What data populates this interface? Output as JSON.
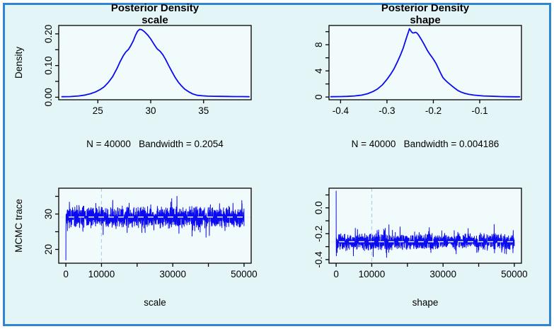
{
  "frame": {
    "border_color": "#2e86d3",
    "background": "#e4f5f7",
    "panel_background": "#f2fbfc",
    "line_color": "#0b0bf2",
    "axis_color": "#000000",
    "hline_color": "#eeeeee",
    "vline_color": "#aecfe8"
  },
  "chart_data": [
    {
      "id": "posterior-density-scale",
      "type": "line",
      "variant": "density",
      "title": "Posterior Density",
      "subtitle": "scale",
      "ylabel": "Density",
      "footer": "N = 40000   Bandwidth = 0.2054",
      "xlim": [
        21.3,
        39.5
      ],
      "ylim": [
        -0.008,
        0.2265
      ],
      "xticks": [
        {
          "v": 25,
          "label": "25"
        },
        {
          "v": 30,
          "label": "30"
        },
        {
          "v": 35,
          "label": "35"
        }
      ],
      "yticks": [
        {
          "v": 0,
          "label": "0.00"
        },
        {
          "v": 0.05,
          "label": ""
        },
        {
          "v": 0.1,
          "label": "0.10"
        },
        {
          "v": 0.15,
          "label": ""
        },
        {
          "v": 0.2,
          "label": "0.20"
        }
      ],
      "grid": false,
      "legend": null,
      "points": [
        [
          21.6,
          0.0015
        ],
        [
          22.4,
          0.002
        ],
        [
          23.2,
          0.004
        ],
        [
          23.8,
          0.007
        ],
        [
          24.3,
          0.011
        ],
        [
          24.8,
          0.017
        ],
        [
          25.2,
          0.024
        ],
        [
          25.6,
          0.033
        ],
        [
          26.0,
          0.047
        ],
        [
          26.4,
          0.065
        ],
        [
          26.8,
          0.09
        ],
        [
          27.1,
          0.112
        ],
        [
          27.4,
          0.131
        ],
        [
          27.65,
          0.143
        ],
        [
          27.9,
          0.151
        ],
        [
          28.1,
          0.162
        ],
        [
          28.35,
          0.178
        ],
        [
          28.55,
          0.195
        ],
        [
          28.75,
          0.208
        ],
        [
          28.95,
          0.2145
        ],
        [
          29.15,
          0.213
        ],
        [
          29.4,
          0.207
        ],
        [
          29.7,
          0.197
        ],
        [
          30.0,
          0.184
        ],
        [
          30.3,
          0.168
        ],
        [
          30.6,
          0.153
        ],
        [
          30.9,
          0.1445
        ],
        [
          31.15,
          0.134
        ],
        [
          31.4,
          0.12
        ],
        [
          31.7,
          0.1
        ],
        [
          32.0,
          0.081
        ],
        [
          32.3,
          0.063
        ],
        [
          32.6,
          0.048
        ],
        [
          32.9,
          0.036
        ],
        [
          33.2,
          0.026
        ],
        [
          33.6,
          0.017
        ],
        [
          34.0,
          0.01
        ],
        [
          34.4,
          0.006
        ],
        [
          34.9,
          0.0045
        ],
        [
          35.4,
          0.0035
        ],
        [
          36.0,
          0.003
        ],
        [
          36.6,
          0.0028
        ],
        [
          37.2,
          0.0025
        ],
        [
          37.9,
          0.002
        ],
        [
          38.6,
          0.002
        ],
        [
          39.3,
          0.0015
        ]
      ]
    },
    {
      "id": "posterior-density-shape",
      "type": "line",
      "variant": "density",
      "title": "Posterior Density",
      "subtitle": "shape",
      "ylabel": "",
      "footer": "N = 40000   Bandwidth = 0.004186",
      "xlim": [
        -0.425,
        -0.01
      ],
      "ylim": [
        -0.42,
        10.95
      ],
      "xticks": [
        {
          "v": -0.4,
          "label": "-0.4"
        },
        {
          "v": -0.3,
          "label": "-0.3"
        },
        {
          "v": -0.2,
          "label": "-0.2"
        },
        {
          "v": -0.1,
          "label": "-0.1"
        }
      ],
      "yticks": [
        {
          "v": 0,
          "label": "0"
        },
        {
          "v": 2,
          "label": ""
        },
        {
          "v": 4,
          "label": "4"
        },
        {
          "v": 6,
          "label": ""
        },
        {
          "v": 8,
          "label": "8"
        },
        {
          "v": 10,
          "label": ""
        }
      ],
      "grid": false,
      "legend": null,
      "points": [
        [
          -0.421,
          0.05
        ],
        [
          -0.4,
          0.07
        ],
        [
          -0.385,
          0.1
        ],
        [
          -0.37,
          0.16
        ],
        [
          -0.355,
          0.28
        ],
        [
          -0.342,
          0.5
        ],
        [
          -0.33,
          0.85
        ],
        [
          -0.32,
          1.25
        ],
        [
          -0.31,
          1.85
        ],
        [
          -0.3,
          2.7
        ],
        [
          -0.292,
          3.5
        ],
        [
          -0.285,
          4.3
        ],
        [
          -0.278,
          5.3
        ],
        [
          -0.271,
          6.4
        ],
        [
          -0.265,
          7.5
        ],
        [
          -0.26,
          8.6
        ],
        [
          -0.256,
          9.5
        ],
        [
          -0.2535,
          10.0
        ],
        [
          -0.2515,
          10.45
        ],
        [
          -0.2495,
          10.25
        ],
        [
          -0.247,
          9.95
        ],
        [
          -0.244,
          9.8
        ],
        [
          -0.2415,
          9.82
        ],
        [
          -0.2385,
          9.9
        ],
        [
          -0.2355,
          9.8
        ],
        [
          -0.232,
          9.5
        ],
        [
          -0.228,
          9.05
        ],
        [
          -0.223,
          8.45
        ],
        [
          -0.218,
          7.8
        ],
        [
          -0.213,
          7.15
        ],
        [
          -0.208,
          6.6
        ],
        [
          -0.2035,
          6.15
        ],
        [
          -0.199,
          5.7
        ],
        [
          -0.194,
          5.1
        ],
        [
          -0.189,
          4.35
        ],
        [
          -0.184,
          3.6
        ],
        [
          -0.179,
          2.95
        ],
        [
          -0.1745,
          2.6
        ],
        [
          -0.17,
          2.3
        ],
        [
          -0.165,
          2.0
        ],
        [
          -0.159,
          1.65
        ],
        [
          -0.153,
          1.3
        ],
        [
          -0.147,
          1.0
        ],
        [
          -0.14,
          0.75
        ],
        [
          -0.132,
          0.55
        ],
        [
          -0.123,
          0.4
        ],
        [
          -0.113,
          0.3
        ],
        [
          -0.103,
          0.23
        ],
        [
          -0.092,
          0.17
        ],
        [
          -0.08,
          0.13
        ],
        [
          -0.067,
          0.1
        ],
        [
          -0.053,
          0.07
        ],
        [
          -0.038,
          0.05
        ],
        [
          -0.024,
          0.04
        ],
        [
          -0.014,
          0.03
        ]
      ]
    },
    {
      "id": "mcmc-trace-scale",
      "type": "line",
      "variant": "trace",
      "title": "",
      "xlabel": "scale",
      "ylabel": "MCMC trace",
      "xlim": [
        -2000,
        52000
      ],
      "ylim": [
        16.1,
        37.3
      ],
      "xticks": [
        {
          "v": 0,
          "label": "0"
        },
        {
          "v": 10000,
          "label": "10000"
        },
        {
          "v": 20000,
          "label": ""
        },
        {
          "v": 30000,
          "label": "30000"
        },
        {
          "v": 40000,
          "label": ""
        },
        {
          "v": 50000,
          "label": "50000"
        }
      ],
      "yticks": [
        {
          "v": 20,
          "label": "20"
        },
        {
          "v": 25,
          "label": ""
        },
        {
          "v": 30,
          "label": "30"
        },
        {
          "v": 35,
          "label": ""
        }
      ],
      "grid": false,
      "legend": null,
      "hline": 29.15,
      "vline": 10000,
      "trace": {
        "seed": 7,
        "n": 1600,
        "x_start": 0,
        "x_end": 50000,
        "mean": 29.15,
        "spread": 3.2,
        "spike_prob": 0.07,
        "spike_extra": 2.5,
        "min": 23.3,
        "max": 36.2,
        "start": 17.0
      }
    },
    {
      "id": "mcmc-trace-shape",
      "type": "line",
      "variant": "trace",
      "title": "",
      "xlabel": "shape",
      "ylabel": "",
      "xlim": [
        -2000,
        52000
      ],
      "ylim": [
        -0.428,
        0.152
      ],
      "xticks": [
        {
          "v": 0,
          "label": "0"
        },
        {
          "v": 10000,
          "label": "10000"
        },
        {
          "v": 20000,
          "label": ""
        },
        {
          "v": 30000,
          "label": "30000"
        },
        {
          "v": 40000,
          "label": ""
        },
        {
          "v": 50000,
          "label": "50000"
        }
      ],
      "yticks": [
        {
          "v": 0.1,
          "label": ""
        },
        {
          "v": 0.0,
          "label": "0.0"
        },
        {
          "v": -0.1,
          "label": ""
        },
        {
          "v": -0.2,
          "label": "-0.2"
        },
        {
          "v": -0.3,
          "label": ""
        },
        {
          "v": -0.4,
          "label": "-0.4"
        }
      ],
      "grid": false,
      "legend": null,
      "hline": -0.262,
      "vline": 10000,
      "trace": {
        "seed": 13,
        "n": 1600,
        "x_start": 0,
        "x_end": 50000,
        "mean": -0.262,
        "spread": 0.068,
        "spike_prob": 0.07,
        "spike_extra": 0.055,
        "min": -0.384,
        "max": -0.055,
        "start": 0.13
      }
    }
  ]
}
